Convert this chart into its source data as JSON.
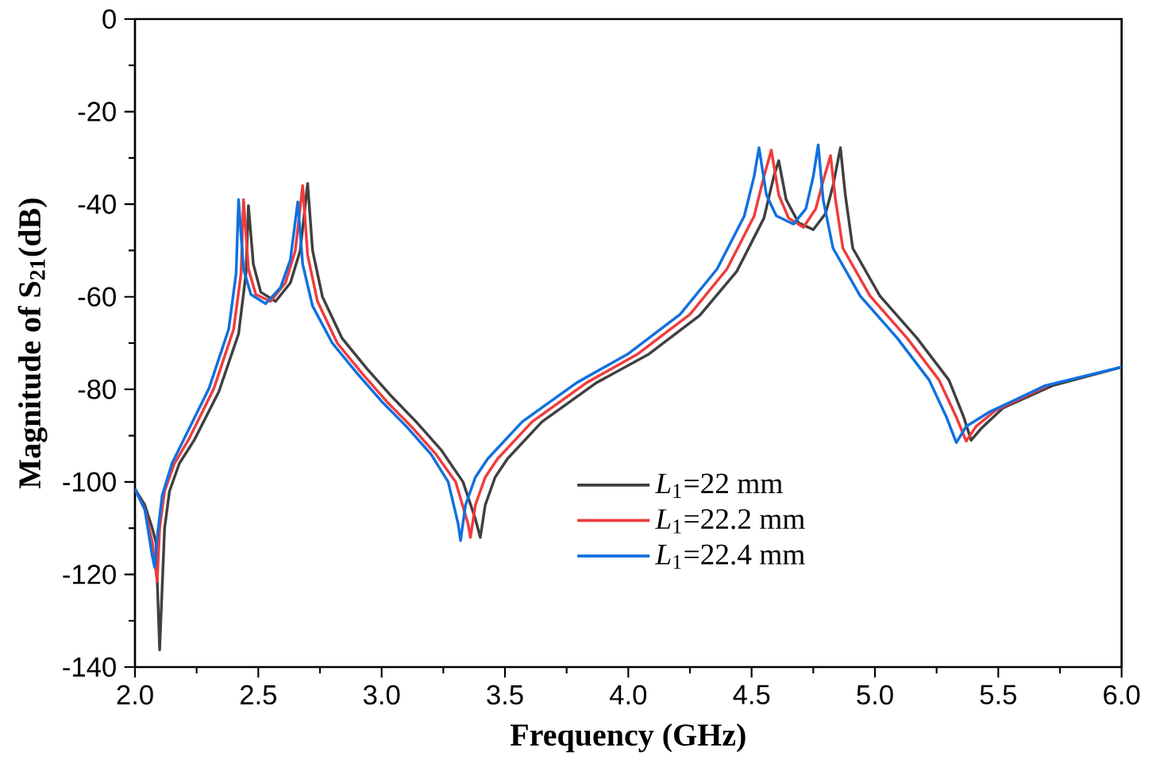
{
  "chart_data": {
    "type": "line",
    "xlabel": "Frequency (GHz)",
    "ylabel": "Magnitude of S$_{21}$(dB)",
    "xlim": [
      2,
      6
    ],
    "ylim": [
      -140,
      0
    ],
    "xticks": [
      {
        "value": 2,
        "label": "2.0"
      },
      {
        "value": 2.5,
        "label": "2.5"
      },
      {
        "value": 3,
        "label": "3.0"
      },
      {
        "value": 3.5,
        "label": "3.5"
      },
      {
        "value": 4,
        "label": "4.0"
      },
      {
        "value": 4.5,
        "label": "4.5"
      },
      {
        "value": 5,
        "label": "5.0"
      },
      {
        "value": 5.5,
        "label": "5.5"
      },
      {
        "value": 6,
        "label": "6.0"
      }
    ],
    "yticks": [
      -140,
      -120,
      -100,
      -80,
      -60,
      -40,
      -20,
      0
    ],
    "legend": "bottom",
    "grid": false,
    "line_style": "solid",
    "marker": "none",
    "series": [
      {
        "name": "*L*$_{1}$=22 mm",
        "color": "#404040",
        "x": [
          2.0,
          2.04,
          2.07,
          2.085,
          2.1,
          2.12,
          2.14,
          2.18,
          2.24,
          2.34,
          2.42,
          2.45,
          2.46,
          2.48,
          2.51,
          2.57,
          2.63,
          2.67,
          2.7,
          2.72,
          2.76,
          2.84,
          2.94,
          3.04,
          3.14,
          3.24,
          3.33,
          3.38,
          3.4,
          3.42,
          3.46,
          3.51,
          3.65,
          3.87,
          4.08,
          4.29,
          4.44,
          4.55,
          4.59,
          4.61,
          4.64,
          4.69,
          4.75,
          4.8,
          4.83,
          4.86,
          4.88,
          4.91,
          5.02,
          5.17,
          5.3,
          5.36,
          5.39,
          5.43,
          5.52,
          5.72,
          6.0
        ],
        "values": [
          -101.5,
          -105,
          -110,
          -113,
          -136.3,
          -110,
          -102,
          -96,
          -91,
          -80.5,
          -68,
          -55,
          -40.3,
          -53,
          -59,
          -61,
          -57,
          -50,
          -35.5,
          -50,
          -60,
          -69,
          -75.5,
          -81.5,
          -87,
          -93,
          -100,
          -108,
          -112,
          -105,
          -99,
          -95,
          -87,
          -78.6,
          -72.5,
          -64,
          -54.5,
          -43,
          -34,
          -30.6,
          -39,
          -44,
          -45.5,
          -42,
          -36,
          -27.8,
          -38,
          -49.5,
          -59.8,
          -68.9,
          -78,
          -86,
          -91,
          -88.5,
          -84,
          -79.2,
          -75.2
        ]
      },
      {
        "name": "*L*$_{1}$=22.2 mm",
        "color": "#f03c3c",
        "x": [
          2.0,
          2.04,
          2.07,
          2.09,
          2.1,
          2.12,
          2.16,
          2.22,
          2.32,
          2.4,
          2.43,
          2.44,
          2.46,
          2.49,
          2.55,
          2.61,
          2.65,
          2.68,
          2.7,
          2.74,
          2.82,
          2.92,
          3.02,
          3.12,
          3.22,
          3.3,
          3.35,
          3.36,
          3.38,
          3.42,
          3.47,
          3.61,
          3.83,
          4.04,
          4.25,
          4.4,
          4.51,
          4.55,
          4.58,
          4.61,
          4.65,
          4.71,
          4.76,
          4.79,
          4.82,
          4.84,
          4.87,
          4.98,
          5.13,
          5.26,
          5.33,
          5.37,
          5.41,
          5.49,
          5.7
        ],
        "values": [
          -101.5,
          -106,
          -113,
          -121.5,
          -110,
          -102,
          -96,
          -90.6,
          -79.8,
          -67,
          -55,
          -39,
          -54,
          -59.5,
          -61,
          -57,
          -50,
          -36,
          -51,
          -61,
          -70,
          -76.5,
          -82.6,
          -88,
          -94,
          -100,
          -109,
          -112,
          -105,
          -99,
          -95,
          -87,
          -78.6,
          -72.3,
          -63.8,
          -54,
          -42.6,
          -34,
          -28.3,
          -38,
          -43,
          -45,
          -41,
          -35,
          -29.5,
          -39,
          -49.5,
          -59.8,
          -68.9,
          -78,
          -86,
          -91.2,
          -88,
          -84.5,
          -79.2
        ]
      },
      {
        "name": "*L*$_{1}$=22.4 mm",
        "color": "#1070e0",
        "x": [
          2.0,
          2.04,
          2.07,
          2.08,
          2.09,
          2.11,
          2.15,
          2.2,
          2.3,
          2.38,
          2.41,
          2.42,
          2.44,
          2.47,
          2.53,
          2.59,
          2.63,
          2.66,
          2.68,
          2.72,
          2.8,
          2.9,
          3.0,
          3.1,
          3.2,
          3.27,
          3.31,
          3.32,
          3.34,
          3.38,
          3.43,
          3.57,
          3.79,
          4.0,
          4.21,
          4.36,
          4.47,
          4.51,
          4.53,
          4.56,
          4.6,
          4.67,
          4.72,
          4.75,
          4.77,
          4.79,
          4.83,
          4.94,
          5.09,
          5.22,
          5.29,
          5.33,
          5.37,
          5.46,
          5.69,
          6.0
        ],
        "values": [
          -101.5,
          -106,
          -116,
          -118.5,
          -112,
          -103,
          -96,
          -90.6,
          -79.8,
          -67,
          -55,
          -39,
          -54,
          -59.5,
          -61.5,
          -58,
          -52,
          -39.5,
          -53,
          -62,
          -70,
          -76.5,
          -82.6,
          -88,
          -94,
          -100,
          -109,
          -112.7,
          -105,
          -99,
          -95,
          -87,
          -78.6,
          -72.3,
          -63.8,
          -54,
          -42.6,
          -34,
          -27.8,
          -38,
          -42.5,
          -44.3,
          -41,
          -34,
          -27.2,
          -39,
          -49.5,
          -59.8,
          -68.9,
          -78,
          -86,
          -91.5,
          -88,
          -85,
          -79.2,
          -75.2
        ]
      }
    ]
  }
}
